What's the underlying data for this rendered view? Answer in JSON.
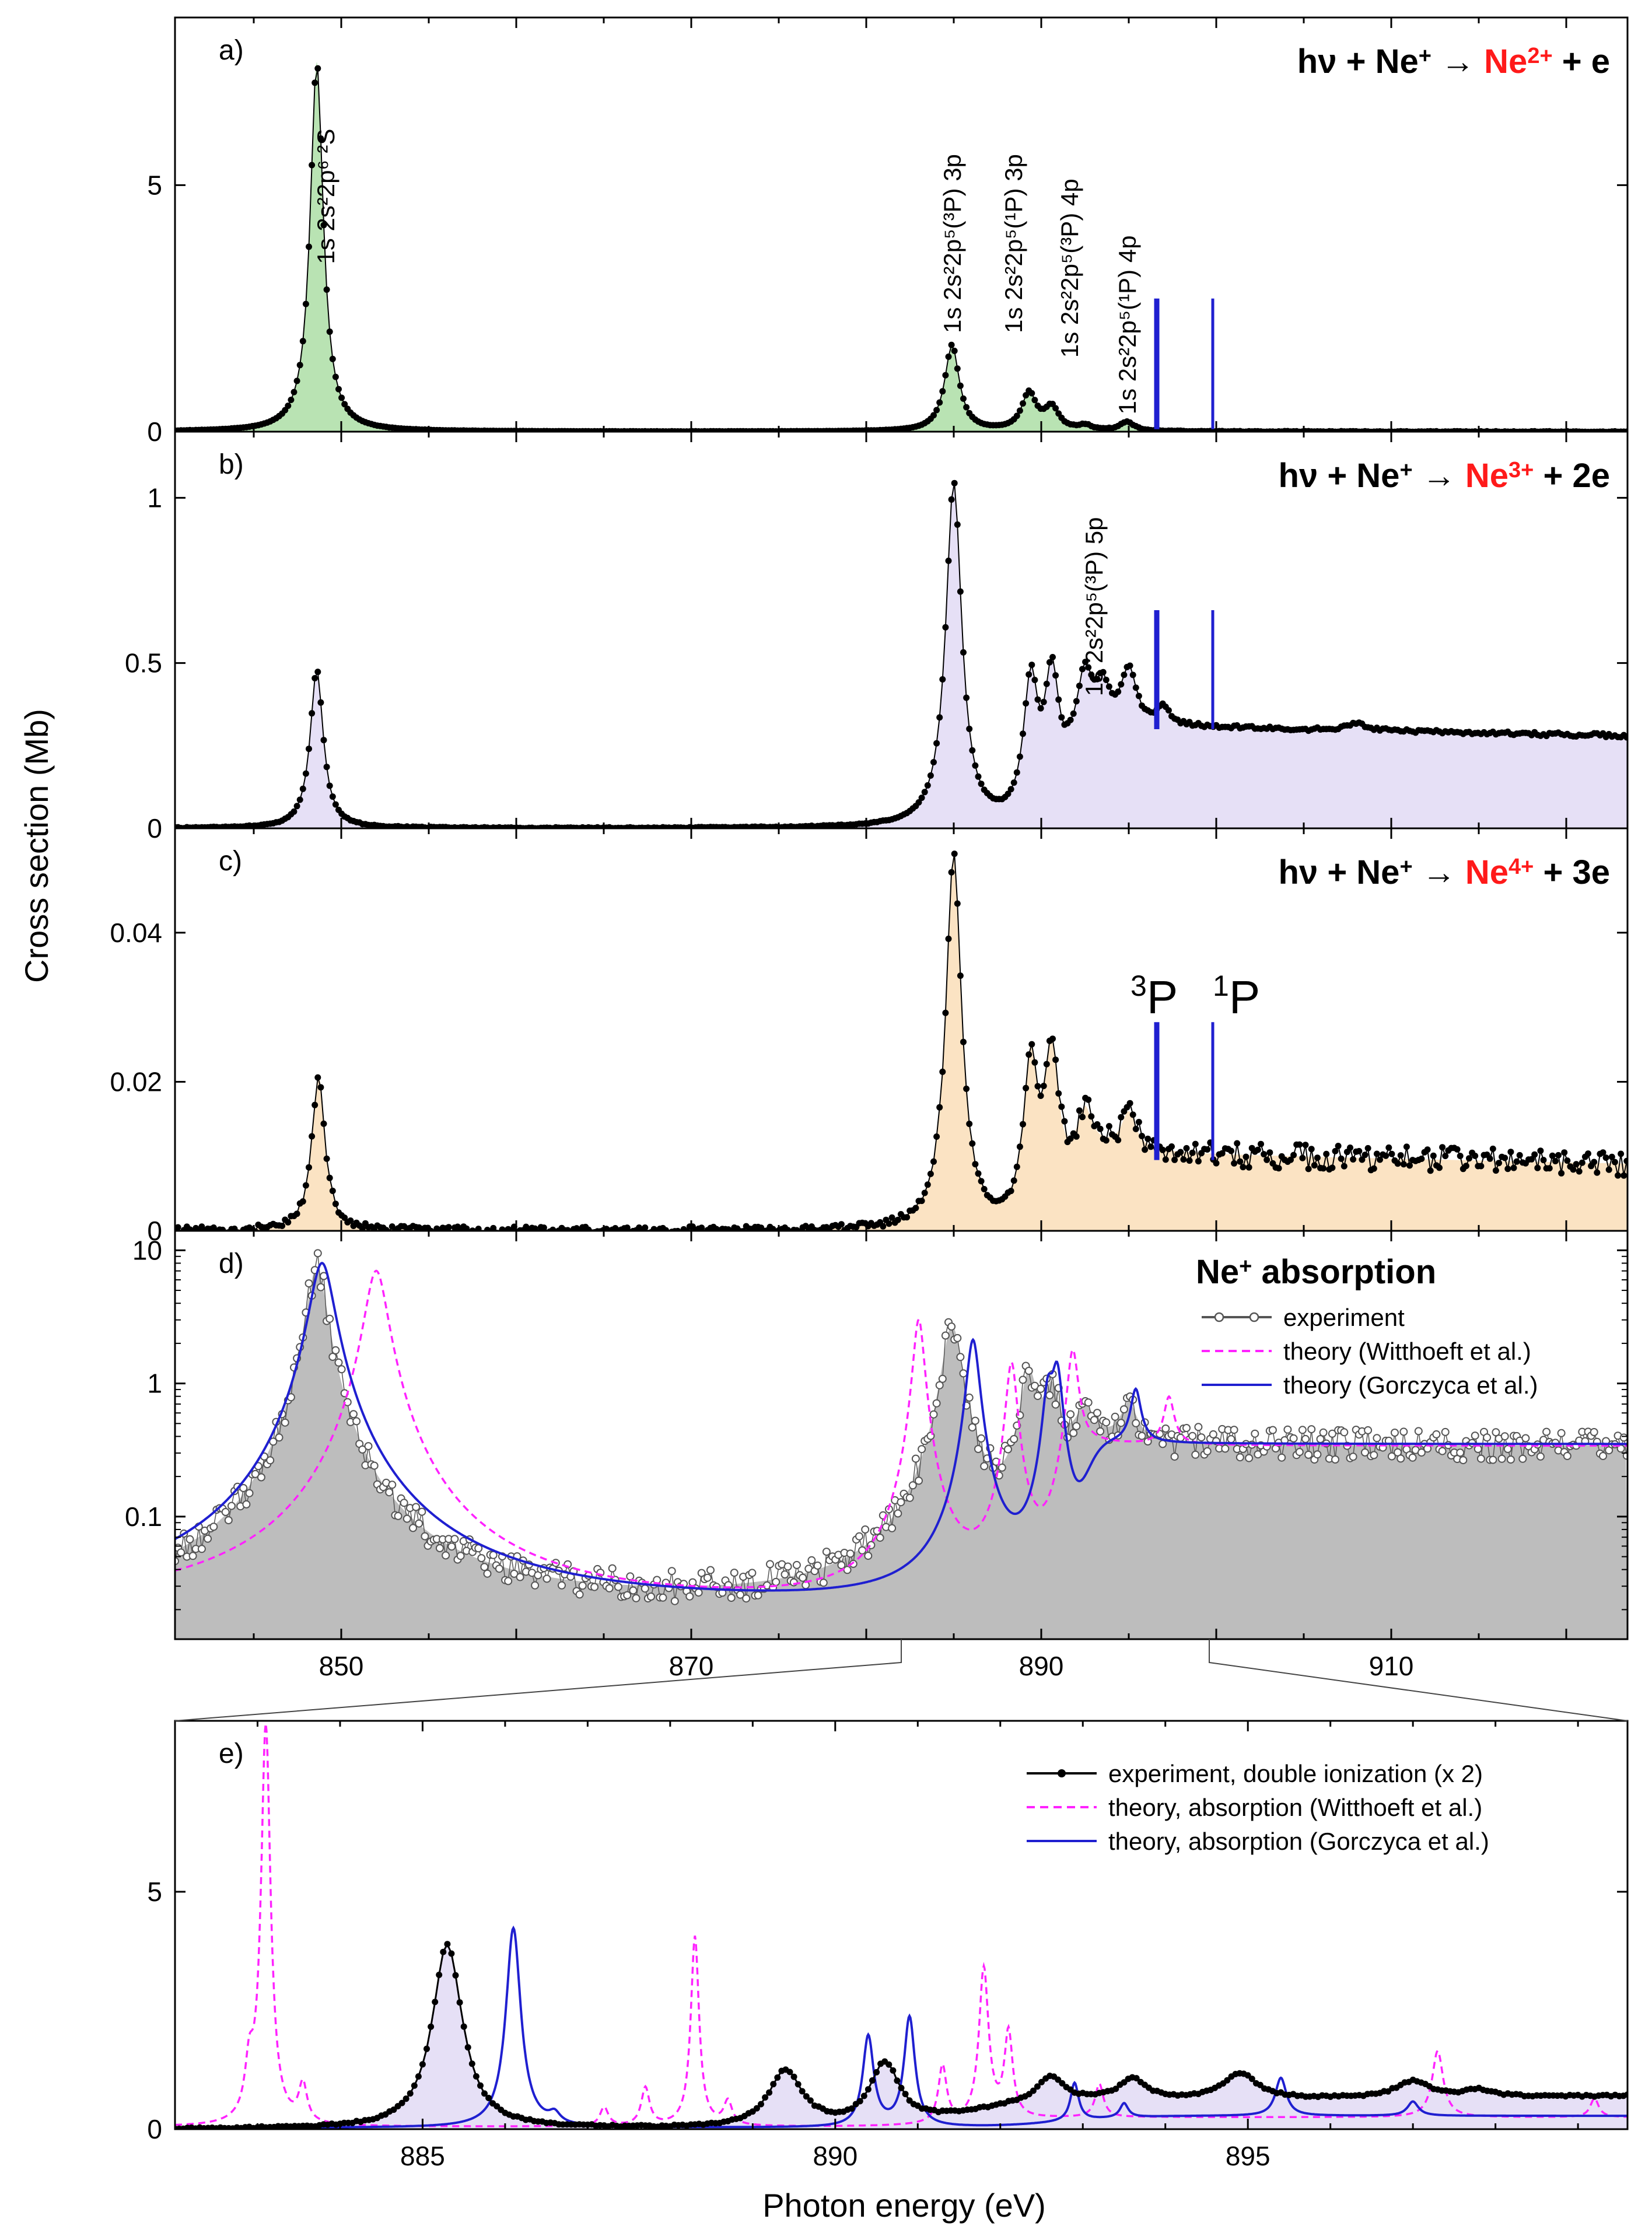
{
  "figure": {
    "y_axis_label": "Cross section  (Mb)",
    "x_axis_label": "Photon energy (eV)",
    "colors": {
      "green_fill": "#b9e3b3",
      "lavender_fill": "#e6e0f6",
      "peach_fill": "#fbe3c3",
      "gray_fill": "#bdbdbd",
      "blue": "#1f1fd0",
      "magenta": "#ff22ff",
      "red": "#ff1a1a",
      "black": "#000000"
    }
  },
  "chart_data": [
    {
      "id": "a",
      "type": "line",
      "panel_label": "a)",
      "reaction": {
        "left": "hν + Ne",
        "left_sup": "+",
        "arrow": "→",
        "product": "Ne",
        "product_sup": "2+",
        "right": "+ e"
      },
      "x": [
        840.5,
        923.5
      ],
      "ylim": [
        0,
        8.4
      ],
      "yticks": [
        0,
        5
      ],
      "ytick_labels": [
        "0",
        "5"
      ],
      "baseline": 0,
      "peaks": [
        {
          "center": 848.6,
          "height": 7.5,
          "width": 0.45
        },
        {
          "center": 884.9,
          "height": 1.75,
          "width": 0.5
        },
        {
          "center": 889.3,
          "height": 0.75,
          "width": 0.5
        },
        {
          "center": 890.6,
          "height": 0.45,
          "width": 0.5
        },
        {
          "center": 892.5,
          "height": 0.1,
          "width": 0.5
        },
        {
          "center": 894.9,
          "height": 0.18,
          "width": 0.5
        }
      ],
      "threshold_lines": [
        896.6,
        899.8
      ],
      "threshold_line_top": 2.7,
      "annotations": [
        {
          "text": "1s 2s²2p⁶ ²S",
          "x": 849.6,
          "y": 3.4
        },
        {
          "text": "1s 2s²2p⁵(³P) 3p",
          "x": 885.4,
          "y": 2.0
        },
        {
          "text": "1s 2s²2p⁵(¹P) 3p",
          "x": 888.9,
          "y": 2.0
        },
        {
          "text": "1s 2s²2p⁵(³P) 4p",
          "x": 892.1,
          "y": 1.5
        },
        {
          "text": "1s 2s²2p⁵(¹P) 4p",
          "x": 895.4,
          "y": 0.35
        }
      ]
    },
    {
      "id": "b",
      "type": "line",
      "panel_label": "b)",
      "reaction": {
        "left": "hν + Ne",
        "left_sup": "+",
        "arrow": "→",
        "product": "Ne",
        "product_sup": "3+",
        "right": "+ 2e"
      },
      "x": [
        840.5,
        923.5
      ],
      "ylim": [
        0,
        1.2
      ],
      "yticks": [
        0,
        0.5,
        1
      ],
      "ytick_labels": [
        "0",
        "0.5",
        "1"
      ],
      "continuum": {
        "onset": 891.5,
        "level": 0.31,
        "end_level": 0.28
      },
      "peaks": [
        {
          "center": 848.6,
          "height": 0.48,
          "width": 0.45
        },
        {
          "center": 885.0,
          "height": 1.04,
          "width": 0.55
        },
        {
          "center": 889.4,
          "height": 0.41,
          "width": 0.5
        },
        {
          "center": 890.6,
          "height": 0.4,
          "width": 0.5
        },
        {
          "center": 892.5,
          "height": 0.16,
          "width": 0.45
        },
        {
          "center": 893.5,
          "height": 0.1,
          "width": 0.45
        },
        {
          "center": 895.0,
          "height": 0.16,
          "width": 0.5
        },
        {
          "center": 897.0,
          "height": 0.05,
          "width": 0.4
        },
        {
          "center": 908.0,
          "height": 0.02,
          "width": 0.7
        }
      ],
      "threshold_lines": [
        896.6,
        899.8
      ],
      "threshold_line_top": 0.66,
      "annotations": [
        {
          "text": "1s 2s²2p⁵(³P) 5p",
          "x": 893.5,
          "y": 0.4
        }
      ]
    },
    {
      "id": "c",
      "type": "line",
      "panel_label": "c)",
      "reaction": {
        "left": "hν + Ne",
        "left_sup": "+",
        "arrow": "→",
        "product": "Ne",
        "product_sup": "4+",
        "right": "+ 3e"
      },
      "x": [
        840.5,
        923.5
      ],
      "ylim": [
        0,
        0.054
      ],
      "yticks": [
        0,
        0.02,
        0.04
      ],
      "ytick_labels": [
        "0",
        "0.02",
        "0.04"
      ],
      "continuum": {
        "onset": 891.5,
        "level": 0.0105,
        "end_level": 0.009
      },
      "peaks": [
        {
          "center": 848.7,
          "height": 0.021,
          "width": 0.45
        },
        {
          "center": 885.0,
          "height": 0.05,
          "width": 0.55
        },
        {
          "center": 889.4,
          "height": 0.021,
          "width": 0.5
        },
        {
          "center": 890.6,
          "height": 0.021,
          "width": 0.5
        },
        {
          "center": 892.5,
          "height": 0.005,
          "width": 0.45
        },
        {
          "center": 895.0,
          "height": 0.005,
          "width": 0.5
        }
      ],
      "threshold_lines": [
        896.6,
        899.8
      ],
      "threshold_line_top": 0.028,
      "threshold_labels": [
        {
          "sup": "3",
          "text": "P",
          "x": 896.6
        },
        {
          "sup": "1",
          "text": "P",
          "x": 899.8
        }
      ]
    },
    {
      "id": "d",
      "type": "line",
      "scale": "log",
      "panel_label": "d)",
      "title": "Ne",
      "title_sup": "+",
      "title_rest": " absorption",
      "x": [
        840.5,
        923.5
      ],
      "ylim": [
        0.012,
        14
      ],
      "yticks": [
        0.1,
        1,
        10
      ],
      "ytick_labels": [
        "0.1",
        "1",
        "10"
      ],
      "xticks": [
        850,
        870,
        890,
        910
      ],
      "xtick_labels": [
        "850",
        "870",
        "890",
        "910"
      ],
      "legend": [
        {
          "label": "experiment",
          "style": "open-circles",
          "color": "#555555"
        },
        {
          "label": "theory (Witthoeft et al.)",
          "style": "dashed",
          "color": "#ff22ff"
        },
        {
          "label": "theory (Gorczyca et al.)",
          "style": "solid",
          "color": "#1f1fd0"
        }
      ],
      "series": [
        {
          "name": "experiment",
          "base": 0.02,
          "continuum": {
            "onset": 891.5,
            "level": 0.32
          },
          "peaks": [
            {
              "center": 848.6,
              "height": 7.5,
              "width": 0.55
            },
            {
              "center": 884.9,
              "height": 2.7,
              "width": 0.55
            },
            {
              "center": 889.3,
              "height": 1.1,
              "width": 0.5
            },
            {
              "center": 890.6,
              "height": 0.8,
              "width": 0.5
            },
            {
              "center": 892.5,
              "height": 0.3,
              "width": 0.5
            },
            {
              "center": 895.0,
              "height": 0.35,
              "width": 0.5
            }
          ]
        },
        {
          "name": "theory (Witthoeft et al.)",
          "base": 0.02,
          "continuum": {
            "onset": 891.8,
            "level": 0.32
          },
          "peaks": [
            {
              "center": 852.0,
              "height": 7.0,
              "width": 0.6
            },
            {
              "center": 883.0,
              "height": 3.0,
              "width": 0.3
            },
            {
              "center": 888.3,
              "height": 1.4,
              "width": 0.3
            },
            {
              "center": 891.8,
              "height": 1.6,
              "width": 0.3
            },
            {
              "center": 897.3,
              "height": 0.45,
              "width": 0.3
            }
          ]
        },
        {
          "name": "theory (Gorczyca et al.)",
          "base": 0.02,
          "continuum": {
            "onset": 892.8,
            "level": 0.33
          },
          "peaks": [
            {
              "center": 848.9,
              "height": 8.0,
              "width": 0.65
            },
            {
              "center": 886.1,
              "height": 2.1,
              "width": 0.35
            },
            {
              "center": 890.4,
              "height": 0.8,
              "width": 0.3
            },
            {
              "center": 890.9,
              "height": 1.2,
              "width": 0.3
            },
            {
              "center": 895.4,
              "height": 0.55,
              "width": 0.3
            }
          ]
        }
      ]
    },
    {
      "id": "e",
      "type": "line",
      "panel_label": "e)",
      "x": [
        882.0,
        899.6
      ],
      "ylim": [
        0,
        8.6
      ],
      "yticks": [
        0,
        5
      ],
      "ytick_labels": [
        "0",
        "5"
      ],
      "xticks": [
        885,
        890,
        895
      ],
      "xtick_labels": [
        "885",
        "890",
        "895"
      ],
      "legend": [
        {
          "label": "experiment, double ionization (x 2)",
          "style": "line-dots",
          "color": "#000000"
        },
        {
          "label": "theory, absorption (Witthoeft et al.)",
          "style": "dashed",
          "color": "#ff22ff"
        },
        {
          "label": "theory, absorption (Gorczyca et al.)",
          "style": "solid",
          "color": "#1f1fd0"
        }
      ],
      "series": [
        {
          "name": "experiment, double ionization (x 2)",
          "base": 0.0,
          "continuum": {
            "onset": 891.5,
            "level": 0.55,
            "end_level": 0.7
          },
          "peaks": [
            {
              "center": 885.3,
              "height": 3.9,
              "width": 0.22
            },
            {
              "center": 889.4,
              "height": 1.2,
              "width": 0.25
            },
            {
              "center": 890.6,
              "height": 1.3,
              "width": 0.22
            },
            {
              "center": 892.6,
              "height": 0.55,
              "width": 0.2
            },
            {
              "center": 893.6,
              "height": 0.45,
              "width": 0.2
            },
            {
              "center": 894.9,
              "height": 0.55,
              "width": 0.25
            },
            {
              "center": 897.0,
              "height": 0.35,
              "width": 0.25
            },
            {
              "center": 897.8,
              "height": 0.15,
              "width": 0.2
            }
          ]
        },
        {
          "name": "theory, absorption (Witthoeft et al.)",
          "base": 0.05,
          "continuum": {
            "onset": 891.8,
            "level": 0.2
          },
          "peaks": [
            {
              "center": 883.1,
              "height": 8.4,
              "width": 0.07
            },
            {
              "center": 882.9,
              "height": 1.0,
              "width": 0.06
            },
            {
              "center": 883.55,
              "height": 0.8,
              "width": 0.06
            },
            {
              "center": 887.2,
              "height": 0.4,
              "width": 0.06
            },
            {
              "center": 887.7,
              "height": 0.8,
              "width": 0.06
            },
            {
              "center": 888.3,
              "height": 4.0,
              "width": 0.06
            },
            {
              "center": 888.7,
              "height": 0.5,
              "width": 0.06
            },
            {
              "center": 891.3,
              "height": 1.2,
              "width": 0.06
            },
            {
              "center": 891.8,
              "height": 3.2,
              "width": 0.07
            },
            {
              "center": 892.1,
              "height": 1.8,
              "width": 0.06
            },
            {
              "center": 893.2,
              "height": 0.7,
              "width": 0.06
            },
            {
              "center": 897.3,
              "height": 1.4,
              "width": 0.08
            },
            {
              "center": 899.2,
              "height": 0.4,
              "width": 0.06
            }
          ]
        },
        {
          "name": "theory, absorption (Gorczyca et al.)",
          "base": 0.03,
          "continuum": {
            "onset": 892.8,
            "level": 0.25
          },
          "peaks": [
            {
              "center": 886.1,
              "height": 4.2,
              "width": 0.11
            },
            {
              "center": 886.6,
              "height": 0.2,
              "width": 0.08
            },
            {
              "center": 890.4,
              "height": 1.9,
              "width": 0.08
            },
            {
              "center": 890.9,
              "height": 2.3,
              "width": 0.08
            },
            {
              "center": 892.9,
              "height": 0.8,
              "width": 0.06
            },
            {
              "center": 893.5,
              "height": 0.3,
              "width": 0.06
            },
            {
              "center": 895.4,
              "height": 0.8,
              "width": 0.08
            },
            {
              "center": 897.0,
              "height": 0.3,
              "width": 0.08
            }
          ]
        }
      ]
    }
  ]
}
